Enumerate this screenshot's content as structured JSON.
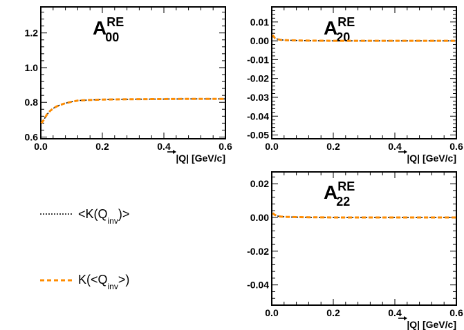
{
  "chart_data": [
    {
      "id": "A00",
      "type": "line",
      "title_main": "A",
      "title_sup": "RE",
      "title_sub": "00",
      "xlabel": "|Q| [GeV/c]",
      "xlim": [
        0,
        0.6
      ],
      "ylim": [
        0.59,
        1.35
      ],
      "xticks": [
        0,
        0.2,
        0.4,
        0.6
      ],
      "xtick_labels": [
        "0.0",
        "0.2",
        "0.4",
        "0.6"
      ],
      "yticks": [
        0.6,
        0.8,
        1.0,
        1.2
      ],
      "ytick_labels": [
        "0.6",
        "0.8",
        "1.0",
        "1.2"
      ],
      "series": [
        {
          "style": "dotted",
          "color": "#000000",
          "x": [
            0.002,
            0.01,
            0.02,
            0.03,
            0.04,
            0.05,
            0.06,
            0.08,
            0.1,
            0.12,
            0.15,
            0.2,
            0.3,
            0.4,
            0.5,
            0.6
          ],
          "values": [
            0.68,
            0.7,
            0.73,
            0.75,
            0.765,
            0.775,
            0.783,
            0.795,
            0.803,
            0.81,
            0.813,
            0.816,
            0.818,
            0.819,
            0.82,
            0.82
          ]
        },
        {
          "style": "dashed",
          "color": "#ff8c00",
          "x": [
            0.002,
            0.01,
            0.02,
            0.03,
            0.04,
            0.05,
            0.06,
            0.08,
            0.1,
            0.12,
            0.15,
            0.2,
            0.3,
            0.4,
            0.5,
            0.6
          ],
          "values": [
            0.68,
            0.7,
            0.73,
            0.75,
            0.765,
            0.775,
            0.783,
            0.795,
            0.803,
            0.81,
            0.813,
            0.816,
            0.818,
            0.819,
            0.82,
            0.82
          ]
        }
      ]
    },
    {
      "id": "A20",
      "type": "line",
      "title_main": "A",
      "title_sup": "RE",
      "title_sub": "20",
      "xlabel": "|Q| [GeV/c]",
      "xlim": [
        0,
        0.6
      ],
      "ylim": [
        -0.052,
        0.018
      ],
      "xticks": [
        0,
        0.2,
        0.4,
        0.6
      ],
      "xtick_labels": [
        "0.0",
        "0.2",
        "0.4",
        "0.6"
      ],
      "yticks": [
        -0.05,
        -0.04,
        -0.03,
        -0.02,
        -0.01,
        0.0,
        0.01
      ],
      "ytick_labels": [
        "-0.05",
        "-0.04",
        "-0.03",
        "-0.02",
        "-0.01",
        "0.00",
        "0.01"
      ],
      "series": [
        {
          "style": "dotted",
          "color": "#000000",
          "x": [
            0.003,
            0.01,
            0.02,
            0.03,
            0.05,
            0.08,
            0.12,
            0.2,
            0.3,
            0.4,
            0.5,
            0.6
          ],
          "values": [
            0.003,
            0.0015,
            0.0008,
            0.0005,
            0.0003,
            0.0002,
            0.0001,
            0.0,
            0.0,
            0.0,
            0.0,
            0.0
          ]
        },
        {
          "style": "dashed",
          "color": "#ff8c00",
          "x": [
            0.003,
            0.01,
            0.02,
            0.03,
            0.05,
            0.08,
            0.12,
            0.2,
            0.3,
            0.4,
            0.5,
            0.6
          ],
          "values": [
            0.003,
            0.0015,
            0.0008,
            0.0005,
            0.0003,
            0.0002,
            0.0001,
            0.0,
            0.0,
            0.0,
            0.0,
            0.0
          ]
        }
      ]
    },
    {
      "id": "A22",
      "type": "line",
      "title_main": "A",
      "title_sup": "RE",
      "title_sub": "22",
      "xlabel": "|Q| [GeV/c]",
      "xlim": [
        0,
        0.6
      ],
      "ylim": [
        -0.052,
        0.027
      ],
      "xticks": [
        0,
        0.2,
        0.4,
        0.6
      ],
      "xtick_labels": [
        "0.0",
        "0.2",
        "0.4",
        "0.6"
      ],
      "yticks": [
        -0.04,
        -0.02,
        0.0,
        0.02
      ],
      "ytick_labels": [
        "-0.04",
        "-0.02",
        "0.00",
        "0.02"
      ],
      "series": [
        {
          "style": "dotted",
          "color": "#000000",
          "x": [
            0.003,
            0.01,
            0.02,
            0.03,
            0.05,
            0.08,
            0.12,
            0.2,
            0.3,
            0.4,
            0.5,
            0.6
          ],
          "values": [
            0.0025,
            0.0015,
            0.0008,
            0.0005,
            0.0003,
            0.0002,
            0.0001,
            0.0,
            0.0,
            0.0,
            0.0,
            0.0
          ]
        },
        {
          "style": "dashed",
          "color": "#ff8c00",
          "x": [
            0.003,
            0.01,
            0.02,
            0.03,
            0.05,
            0.08,
            0.12,
            0.2,
            0.3,
            0.4,
            0.5,
            0.6
          ],
          "values": [
            0.0025,
            0.0015,
            0.0008,
            0.0005,
            0.0003,
            0.0002,
            0.0001,
            0.0,
            0.0,
            0.0,
            0.0,
            0.0
          ]
        }
      ]
    }
  ],
  "legend": {
    "items": [
      {
        "style": "dotted",
        "color": "#000000",
        "text_pre": "<K(Q",
        "text_sub": "inv",
        "text_post": ")>"
      },
      {
        "style": "dashed",
        "color": "#ff8c00",
        "text_pre": "K(<Q",
        "text_sub": "inv",
        "text_post": ">)"
      }
    ]
  }
}
